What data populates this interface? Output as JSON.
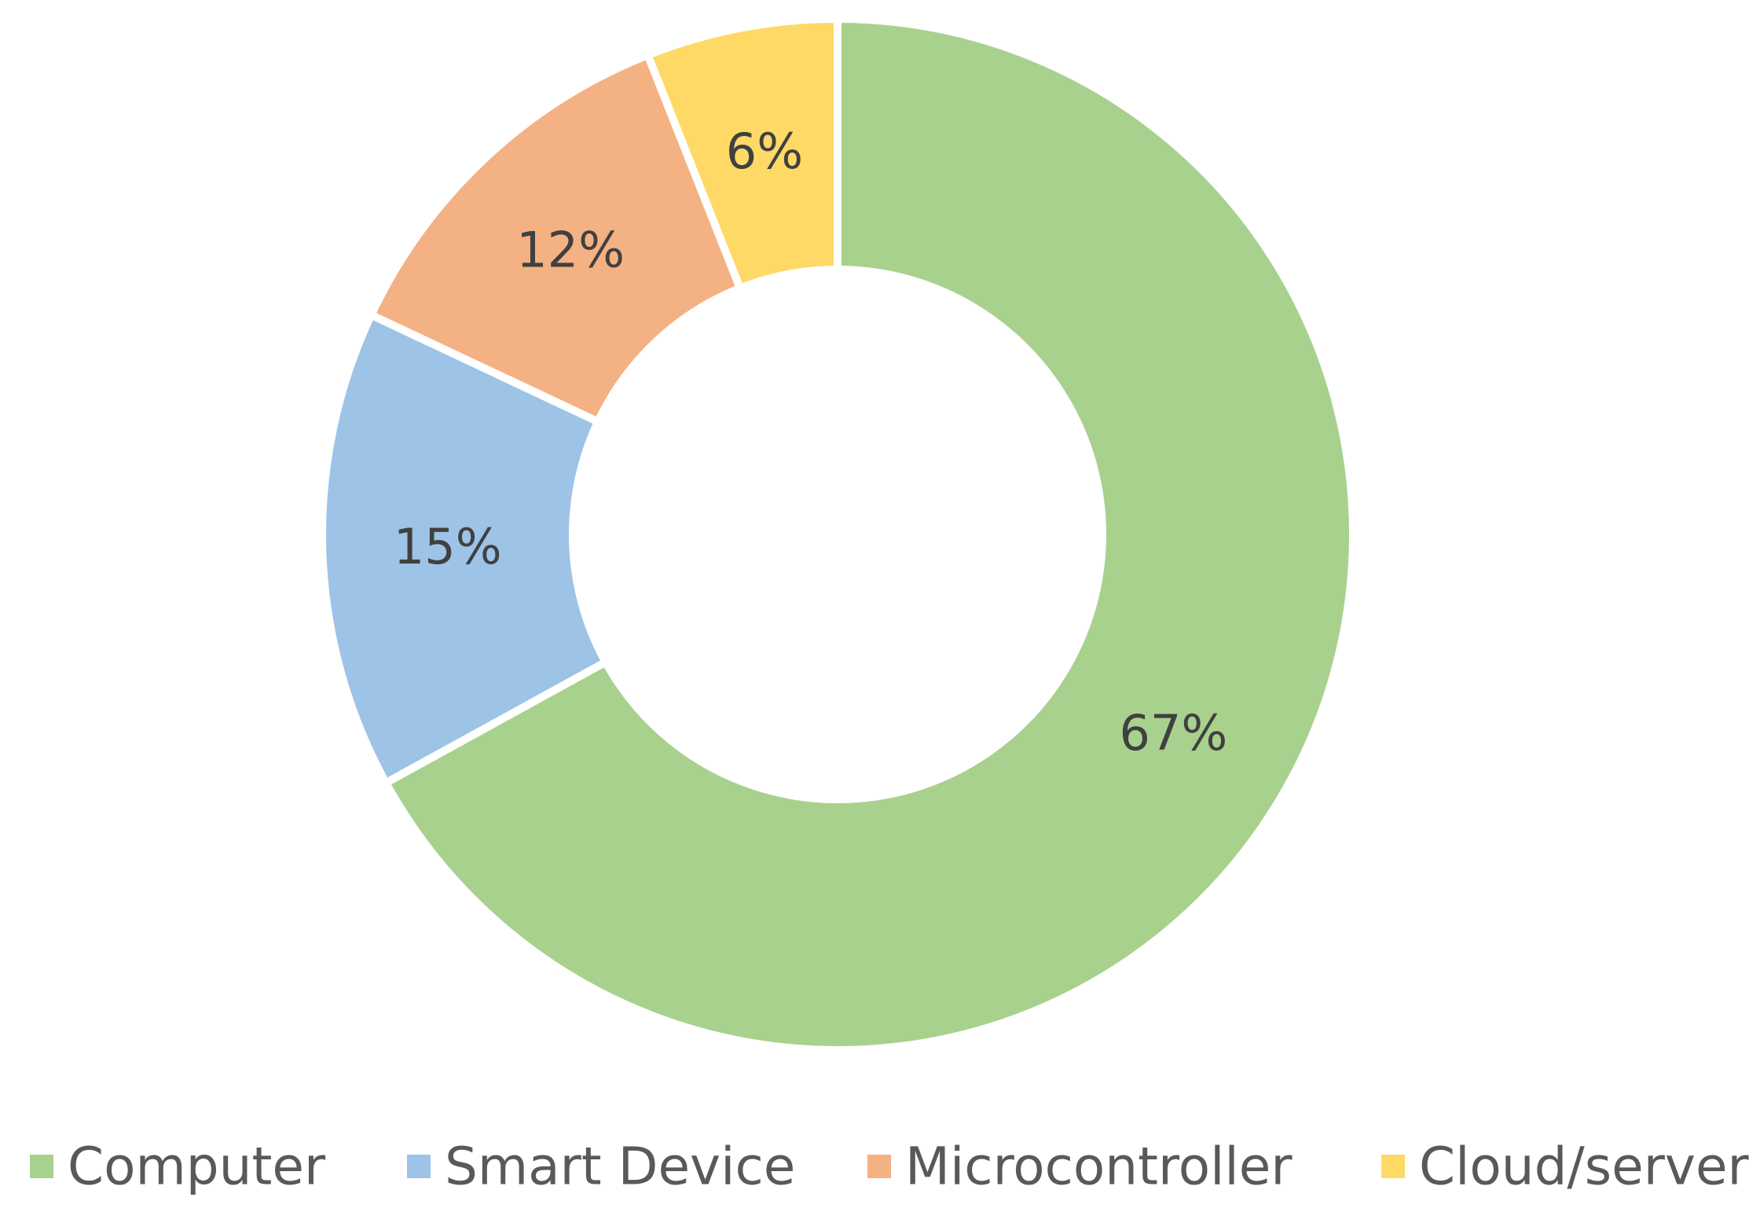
{
  "chart_data": {
    "type": "pie",
    "subtype": "doughnut",
    "title": "",
    "categories": [
      "Computer",
      "Smart Device",
      "Microcontroller",
      "Cloud/server"
    ],
    "values": [
      67,
      15,
      12,
      6
    ],
    "unit": "%",
    "data_labels": [
      "67%",
      "15%",
      "12%",
      "6%"
    ],
    "colors": [
      "#a9d18e",
      "#9dc3e6",
      "#f4b183",
      "#ffd966"
    ],
    "legend": {
      "position": "bottom",
      "entries": [
        "Computer",
        "Smart Device",
        "Microcontroller",
        "Cloud/server"
      ]
    },
    "start_angle": "12 o'clock",
    "direction": "clockwise"
  }
}
